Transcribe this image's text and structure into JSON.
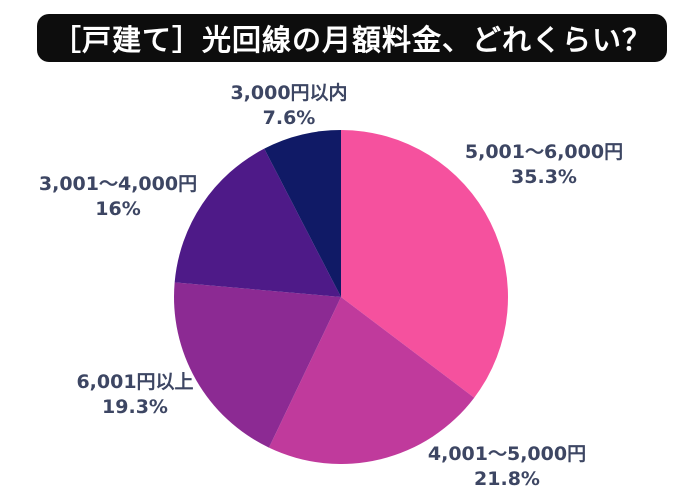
{
  "title": "［戸建て］光回線の月額料金、どれくらい？",
  "colors": {
    "title_background": "#0D0D0D",
    "title_text": "#FFFFFF",
    "label_text": "#3D4663",
    "page_background": "#FFFFFF"
  },
  "chart_data": {
    "type": "pie",
    "title": "［戸建て］光回線の月額料金、どれくらい？",
    "unit": "%",
    "start_angle_deg": 0,
    "direction": "clockwise",
    "legend_position": "around-slices",
    "slices": [
      {
        "label": "5,001〜6,000円",
        "value": 35.3,
        "percent_label": "35.3%",
        "color": "#F5519E"
      },
      {
        "label": "4,001〜5,000円",
        "value": 21.8,
        "percent_label": "21.8%",
        "color": "#C03A9C"
      },
      {
        "label": "6,001円以上",
        "value": 19.3,
        "percent_label": "19.3%",
        "color": "#8C2A93"
      },
      {
        "label": "3,001〜4,000円",
        "value": 16,
        "percent_label": "16%",
        "color": "#4E1A88"
      },
      {
        "label": "3,000円以内",
        "value": 7.6,
        "percent_label": "7.6%",
        "color": "#101A66"
      }
    ]
  }
}
